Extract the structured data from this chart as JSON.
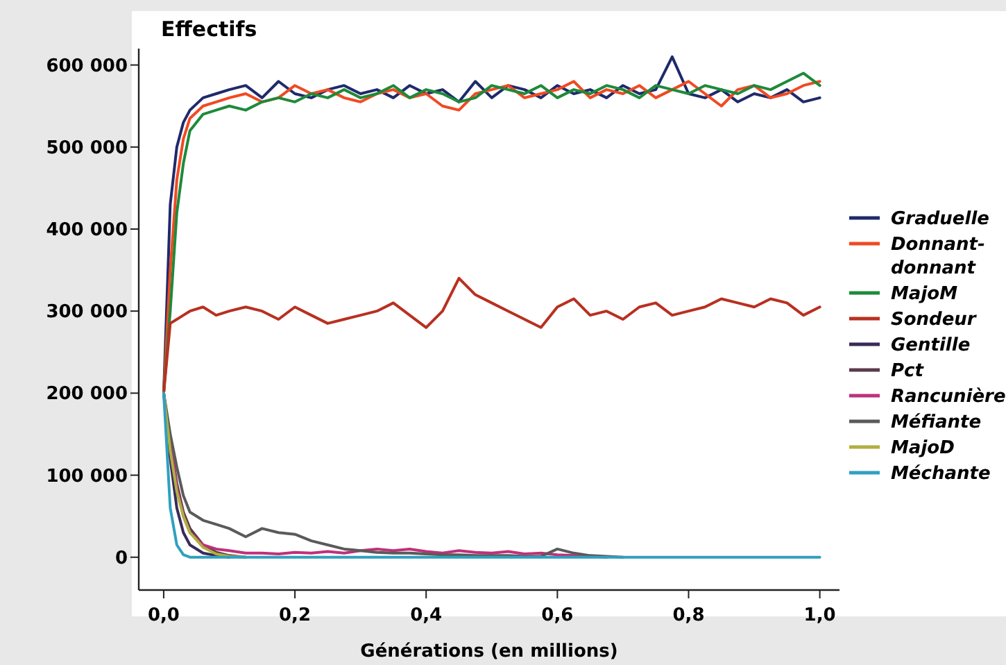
{
  "chart_data": {
    "type": "line",
    "ylabel": "Effectifs",
    "xlabel": "Générations (en millions)",
    "x": [
      0,
      0.01,
      0.02,
      0.03,
      0.04,
      0.06,
      0.08,
      0.1,
      0.125,
      0.15,
      0.175,
      0.2,
      0.225,
      0.25,
      0.275,
      0.3,
      0.325,
      0.35,
      0.375,
      0.4,
      0.425,
      0.45,
      0.475,
      0.5,
      0.525,
      0.55,
      0.575,
      0.6,
      0.625,
      0.65,
      0.675,
      0.7,
      0.725,
      0.75,
      0.775,
      0.8,
      0.825,
      0.85,
      0.875,
      0.9,
      0.925,
      0.95,
      0.975,
      1.0
    ],
    "xlim": [
      -0.038,
      1.03
    ],
    "xticks": [
      {
        "value": 0,
        "label": "0,0"
      },
      {
        "value": 0.2,
        "label": "0,2"
      },
      {
        "value": 0.4,
        "label": "0,4"
      },
      {
        "value": 0.6,
        "label": "0,6"
      },
      {
        "value": 0.8,
        "label": "0,8"
      },
      {
        "value": 1,
        "label": "1,0"
      }
    ],
    "ylim": [
      -40000,
      620000
    ],
    "yticks": [
      0,
      {
        "value": 100000,
        "label": "100 000"
      },
      {
        "value": 200000,
        "label": "200 000"
      },
      {
        "value": 300000,
        "label": "300 000"
      },
      {
        "value": 400000,
        "label": "400 000"
      },
      {
        "value": 500000,
        "label": "500 000"
      },
      {
        "value": 600000,
        "label": "600 000"
      }
    ],
    "grid": false,
    "legend": "right",
    "marker": "none",
    "line_style": "solid",
    "series": [
      {
        "name": "Graduelle",
        "color": "#1f2a6b",
        "values": [
          200000,
          430000,
          500000,
          530000,
          545000,
          560000,
          565000,
          570000,
          575000,
          560000,
          580000,
          565000,
          560000,
          570000,
          575000,
          565000,
          570000,
          560000,
          575000,
          565000,
          570000,
          555000,
          580000,
          560000,
          575000,
          570000,
          560000,
          575000,
          565000,
          570000,
          560000,
          575000,
          565000,
          570000,
          610000,
          565000,
          560000,
          570000,
          555000,
          565000,
          560000,
          570000,
          555000,
          560000
        ]
      },
      {
        "name": "Donnant-donnant",
        "color": "#f04a23",
        "values": [
          200000,
          350000,
          460000,
          510000,
          535000,
          550000,
          555000,
          560000,
          565000,
          555000,
          560000,
          575000,
          565000,
          570000,
          560000,
          555000,
          565000,
          570000,
          560000,
          565000,
          550000,
          545000,
          565000,
          570000,
          575000,
          560000,
          565000,
          570000,
          580000,
          560000,
          570000,
          565000,
          575000,
          560000,
          570000,
          580000,
          565000,
          550000,
          570000,
          575000,
          560000,
          565000,
          575000,
          580000
        ]
      },
      {
        "name": "MajoM",
        "color": "#1e8a3a",
        "values": [
          200000,
          300000,
          420000,
          480000,
          520000,
          540000,
          545000,
          550000,
          545000,
          555000,
          560000,
          555000,
          565000,
          560000,
          570000,
          560000,
          565000,
          575000,
          560000,
          570000,
          565000,
          555000,
          560000,
          575000,
          570000,
          565000,
          575000,
          560000,
          570000,
          565000,
          575000,
          570000,
          560000,
          575000,
          570000,
          565000,
          575000,
          570000,
          565000,
          575000,
          570000,
          580000,
          590000,
          575000
        ]
      },
      {
        "name": "Sondeur",
        "color": "#b83020",
        "values": [
          200000,
          285000,
          290000,
          295000,
          300000,
          305000,
          295000,
          300000,
          305000,
          300000,
          290000,
          305000,
          295000,
          285000,
          290000,
          295000,
          300000,
          310000,
          295000,
          280000,
          300000,
          340000,
          320000,
          310000,
          300000,
          290000,
          280000,
          305000,
          315000,
          295000,
          300000,
          290000,
          305000,
          310000,
          295000,
          300000,
          305000,
          315000,
          310000,
          305000,
          315000,
          310000,
          295000,
          305000
        ]
      },
      {
        "name": "Gentille",
        "color": "#3a2a5a",
        "values": [
          200000,
          120000,
          60000,
          30000,
          15000,
          5000,
          2000,
          0,
          null,
          null,
          null,
          null,
          null,
          null,
          null,
          null,
          null,
          null,
          null,
          null,
          null,
          null,
          null,
          null,
          null,
          null,
          null,
          null,
          null,
          null,
          null,
          null,
          null,
          null,
          null,
          null,
          null,
          null,
          null,
          null,
          null,
          null,
          null,
          null
        ]
      },
      {
        "name": "Pct",
        "color": "#5a3a4a",
        "values": [
          200000,
          140000,
          90000,
          55000,
          35000,
          15000,
          6000,
          2000,
          0,
          null,
          null,
          null,
          null,
          null,
          null,
          null,
          null,
          null,
          null,
          null,
          null,
          null,
          null,
          null,
          null,
          null,
          null,
          null,
          null,
          null,
          null,
          null,
          null,
          null,
          null,
          null,
          null,
          null,
          null,
          null,
          null,
          null,
          null,
          null
        ]
      },
      {
        "name": "Rancunière",
        "color": "#c0307a",
        "values": [
          200000,
          140000,
          85000,
          50000,
          30000,
          15000,
          10000,
          8000,
          5000,
          5000,
          4000,
          6000,
          5000,
          7000,
          5000,
          8000,
          10000,
          8000,
          10000,
          7000,
          5000,
          8000,
          6000,
          5000,
          7000,
          4000,
          5000,
          3000,
          2000,
          1000,
          0,
          null,
          null,
          null,
          null,
          null,
          null,
          null,
          null,
          null,
          null,
          null,
          null,
          null
        ]
      },
      {
        "name": "Méfiante",
        "color": "#5a5a5a",
        "values": [
          200000,
          150000,
          110000,
          75000,
          55000,
          45000,
          40000,
          35000,
          25000,
          35000,
          30000,
          28000,
          20000,
          15000,
          10000,
          8000,
          6000,
          5000,
          5000,
          4000,
          3000,
          3000,
          2000,
          2000,
          2000,
          1000,
          1000,
          10000,
          5000,
          2000,
          1000,
          0,
          null,
          null,
          null,
          null,
          null,
          null,
          null,
          null,
          null,
          null,
          null,
          null
        ]
      },
      {
        "name": "MajoD",
        "color": "#b0b040",
        "values": [
          200000,
          130000,
          80000,
          50000,
          30000,
          12000,
          4000,
          1000,
          0,
          null,
          null,
          null,
          null,
          null,
          null,
          null,
          null,
          null,
          null,
          null,
          null,
          null,
          null,
          null,
          null,
          null,
          null,
          null,
          null,
          null,
          null,
          null,
          null,
          null,
          null,
          null,
          null,
          null,
          null,
          null,
          null,
          null,
          null,
          null
        ]
      },
      {
        "name": "Méchante",
        "color": "#30a0c0",
        "values": [
          200000,
          60000,
          15000,
          3000,
          0,
          0,
          0,
          0,
          0,
          0,
          0,
          0,
          0,
          0,
          0,
          0,
          0,
          0,
          0,
          0,
          0,
          0,
          0,
          0,
          0,
          0,
          0,
          0,
          0,
          0,
          0,
          0,
          0,
          0,
          0,
          0,
          0,
          0,
          0,
          0,
          0,
          0,
          0,
          0
        ]
      }
    ]
  }
}
